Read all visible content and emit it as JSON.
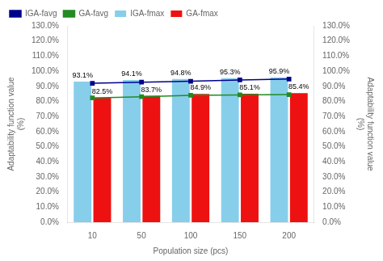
{
  "chart_data": {
    "type": "bar",
    "categories": [
      10,
      50,
      100,
      150,
      200
    ],
    "xlabel": "Population size (pcs)",
    "ylabel": "Adaptability function value\n(%)",
    "y2label": "Adaptability function value\n(%)",
    "ylim": [
      0.0,
      1.3
    ],
    "yticks": [
      {
        "value": 0.0,
        "label": "0.0%"
      },
      {
        "value": 0.1,
        "label": "10.0%"
      },
      {
        "value": 0.2,
        "label": "20.0%"
      },
      {
        "value": 0.3,
        "label": "30.0%"
      },
      {
        "value": 0.4,
        "label": "40.0%"
      },
      {
        "value": 0.5,
        "label": "50.0%"
      },
      {
        "value": 0.6,
        "label": "60.0%"
      },
      {
        "value": 0.7,
        "label": "70.0%"
      },
      {
        "value": 0.8,
        "label": "80.0%"
      },
      {
        "value": 0.9,
        "label": "90.0%"
      },
      {
        "value": 1.0,
        "label": "100.0%"
      },
      {
        "value": 1.1,
        "label": "110.0%"
      },
      {
        "value": 1.2,
        "label": "120.0%"
      },
      {
        "value": 1.3,
        "label": "130.0%"
      }
    ],
    "y2lim": [
      0.0,
      1.3
    ],
    "y2ticks": [
      {
        "value": 0.0,
        "label": "0.0%"
      },
      {
        "value": 0.1,
        "label": "10.0%"
      },
      {
        "value": 0.2,
        "label": "20.0%"
      },
      {
        "value": 0.3,
        "label": "30.0%"
      },
      {
        "value": 0.4,
        "label": "40.0%"
      },
      {
        "value": 0.5,
        "label": "50.0%"
      },
      {
        "value": 0.6,
        "label": "60.0%"
      },
      {
        "value": 0.7,
        "label": "70.0%"
      },
      {
        "value": 0.8,
        "label": "80.0%"
      },
      {
        "value": 0.9,
        "label": "90.0%"
      },
      {
        "value": 1.0,
        "label": "100.0%"
      },
      {
        "value": 1.1,
        "label": "110.0%"
      },
      {
        "value": 1.2,
        "label": "120.0%"
      },
      {
        "value": 1.3,
        "label": "130.0%"
      }
    ],
    "grid": false,
    "legend": "upper left",
    "series": [
      {
        "name": "IGA-fmax",
        "type": "bar",
        "color": "#87CEEB",
        "values": [
          0.931,
          0.941,
          0.948,
          0.953,
          0.959
        ],
        "value_labels": [
          "93.1%",
          "94.1%",
          "94.8%",
          "95.3%",
          "95.9%"
        ],
        "data_labels": true
      },
      {
        "name": "GA-fmax",
        "type": "bar",
        "color": "#EE1111",
        "values": [
          0.825,
          0.837,
          0.849,
          0.851,
          0.854
        ],
        "value_labels": [
          "82.5%",
          "83.7%",
          "84.9%",
          "85.1%",
          "85.4%"
        ],
        "data_labels": true
      },
      {
        "name": "IGA-favg",
        "type": "line",
        "color": "#00008B",
        "marker": "square",
        "values": [
          0.92,
          0.927,
          0.933,
          0.942,
          0.948
        ]
      },
      {
        "name": "GA-favg",
        "type": "line",
        "color": "#228B22",
        "marker": "square",
        "values": [
          0.823,
          0.831,
          0.84,
          0.843,
          0.845
        ]
      }
    ]
  }
}
